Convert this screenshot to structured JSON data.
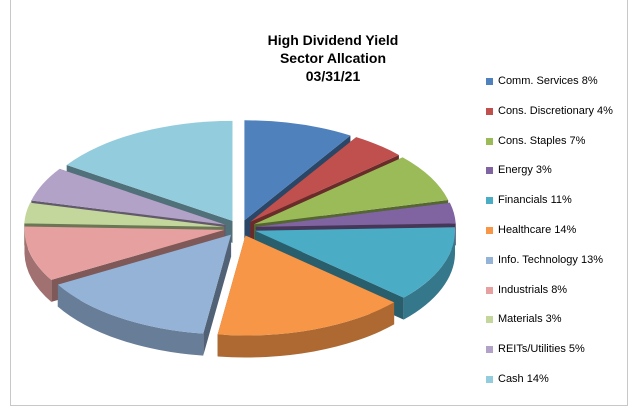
{
  "chart_data": {
    "type": "pie",
    "title_lines": [
      "High Dividend Yield",
      "Sector Allcation",
      "03/31/21"
    ],
    "slices": [
      {
        "label": "Comm. Services 8%",
        "value": 8,
        "color": "#4F81BD"
      },
      {
        "label": "Cons. Discretionary 4%",
        "value": 4,
        "color": "#C0504D"
      },
      {
        "label": "Cons. Staples 7%",
        "value": 7,
        "color": "#9BBB59"
      },
      {
        "label": "Energy 3%",
        "value": 3,
        "color": "#8064A2"
      },
      {
        "label": "Financials 11%",
        "value": 11,
        "color": "#4BACC6"
      },
      {
        "label": "Healthcare 14%",
        "value": 14,
        "color": "#F79646"
      },
      {
        "label": "Info. Technology 13%",
        "value": 13,
        "color": "#95B3D7"
      },
      {
        "label": "Industrials 8%",
        "value": 8,
        "color": "#E6A0A0"
      },
      {
        "label": "Materials 3%",
        "value": 3,
        "color": "#C3D69B"
      },
      {
        "label": "REITs/Utilities 5%",
        "value": 5,
        "color": "#B3A2C7"
      },
      {
        "label": "Cash 14%",
        "value": 14,
        "color": "#93CDDD"
      }
    ],
    "style": "exploded-3d",
    "legend_position": "right"
  }
}
